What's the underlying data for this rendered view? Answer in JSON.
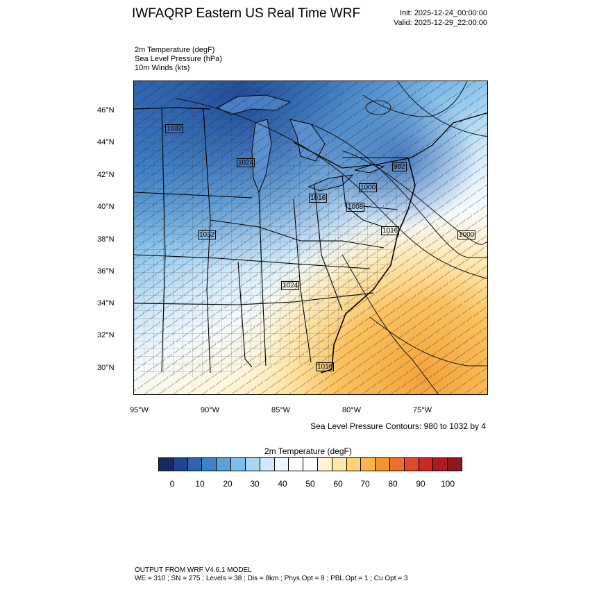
{
  "header": {
    "title": "IWFAQRP Eastern US Real Time WRF",
    "init": "Init: 2025-12-24_00:00:00",
    "valid": "Valid: 2025-12-29_22:00:00"
  },
  "fields": {
    "temperature": "2m Temperature   (degF)",
    "pressure": "Sea Level Pressure   (hPa)",
    "winds": "10m Winds   (kts)"
  },
  "map": {
    "lat_ticks": [
      "46°N",
      "44°N",
      "42°N",
      "40°N",
      "38°N",
      "36°N",
      "34°N",
      "32°N",
      "30°N"
    ],
    "lon_ticks": [
      "95°W",
      "90°W",
      "85°W",
      "80°W",
      "75°W"
    ],
    "pressure_labels": [
      {
        "text": "1032",
        "region": "northern-plains"
      },
      {
        "text": "1024",
        "region": "wisconsin"
      },
      {
        "text": "992",
        "region": "new-england-inland"
      },
      {
        "text": "1000",
        "region": "new-york"
      },
      {
        "text": "1008",
        "region": "pennsylvania"
      },
      {
        "text": "1016",
        "region": "ohio"
      },
      {
        "text": "1016",
        "region": "delmarva"
      },
      {
        "text": "1000",
        "region": "atlantic-offshore"
      },
      {
        "text": "1032",
        "region": "missouri"
      },
      {
        "text": "1024",
        "region": "tennessee"
      },
      {
        "text": "1016",
        "region": "georgia-coast"
      }
    ],
    "contour_note": "Sea Level Pressure Contours: 980 to 1032 by 4"
  },
  "colorbar": {
    "title": "2m Temperature  (degF)",
    "labels": [
      "0",
      "10",
      "20",
      "30",
      "40",
      "50",
      "60",
      "70",
      "80",
      "90",
      "100"
    ],
    "colors": [
      "#1b2a5e",
      "#1f4590",
      "#2c63b2",
      "#3b83c7",
      "#5ba2d8",
      "#80bde8",
      "#a9d6f3",
      "#cfe9fa",
      "#eef7fd",
      "#ffffff",
      "#ffffff",
      "#fff6d6",
      "#ffe8a6",
      "#ffd273",
      "#fbb548",
      "#f5932f",
      "#ee6f2c",
      "#e04a2a",
      "#c72a27",
      "#a91d22",
      "#8a1a1c"
    ]
  },
  "footer": {
    "line1": "OUTPUT FROM WRF V4.6.1 MODEL",
    "line2": "WE = 310 ; SN = 275 ; Levels = 38 ; Dis = 8km ; Phys Opt = 8 ; PBL Opt = 1 ; Cu Opt = 3"
  }
}
